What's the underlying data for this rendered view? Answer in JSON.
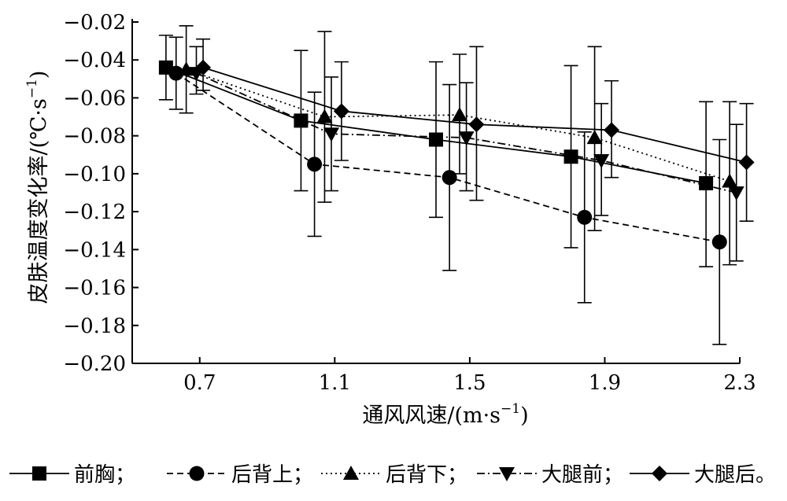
{
  "chart_data": {
    "type": "line",
    "title": "",
    "xlabel": "通风风速/(m·s",
    "xlabel_sup": "−1",
    "xlabel_tail": ")",
    "ylabel": "皮肤温度变化率/(℃·s",
    "ylabel_sup": "−1",
    "ylabel_tail": ")",
    "xlim": [
      0.5,
      2.3
    ],
    "ylim": [
      -0.2,
      -0.02
    ],
    "x_ticks": [
      0.7,
      1.1,
      1.5,
      1.9,
      2.3
    ],
    "x_tick_labels": [
      "0.7",
      "1.1",
      "1.5",
      "1.9",
      "2.3"
    ],
    "y_ticks": [
      -0.02,
      -0.04,
      -0.06,
      -0.08,
      -0.1,
      -0.12,
      -0.14,
      -0.16,
      -0.18,
      -0.2
    ],
    "y_tick_labels": [
      "−0.02",
      "−0.04",
      "−0.06",
      "−0.08",
      "−0.10",
      "−0.12",
      "−0.14",
      "−0.16",
      "−0.18",
      "−0.20"
    ],
    "grid": false,
    "legend_position": "bottom",
    "legend_separator": "；",
    "legend_end": "。",
    "series": [
      {
        "name": "前胸",
        "marker": "square",
        "dash": "solid",
        "x": [
          0.6,
          1.0,
          1.4,
          1.8,
          2.2
        ],
        "y": [
          -0.044,
          -0.072,
          -0.082,
          -0.091,
          -0.105
        ],
        "err_low": [
          -0.061,
          -0.109,
          -0.123,
          -0.139,
          -0.149
        ],
        "err_high": [
          -0.027,
          -0.035,
          -0.041,
          -0.043,
          -0.062
        ]
      },
      {
        "name": "后背上",
        "marker": "circle",
        "dash": "dashed",
        "x": [
          0.63,
          1.04,
          1.44,
          1.84,
          2.24
        ],
        "y": [
          -0.047,
          -0.095,
          -0.102,
          -0.123,
          -0.136
        ],
        "err_low": [
          -0.066,
          -0.133,
          -0.151,
          -0.168,
          -0.19
        ],
        "err_high": [
          -0.028,
          -0.057,
          -0.053,
          -0.078,
          -0.082
        ]
      },
      {
        "name": "后背下",
        "marker": "triangle-up",
        "dash": "dotted",
        "x": [
          0.66,
          1.07,
          1.47,
          1.87,
          2.27
        ],
        "y": [
          -0.045,
          -0.07,
          -0.069,
          -0.081,
          -0.104
        ],
        "err_low": [
          -0.068,
          -0.115,
          -0.1,
          -0.13,
          -0.148
        ],
        "err_high": [
          -0.022,
          -0.025,
          -0.037,
          -0.033,
          -0.062
        ]
      },
      {
        "name": "大腿前",
        "marker": "triangle-down",
        "dash": "dashdot",
        "x": [
          0.69,
          1.09,
          1.49,
          1.89,
          2.29
        ],
        "y": [
          -0.047,
          -0.079,
          -0.081,
          -0.093,
          -0.11
        ],
        "err_low": [
          -0.058,
          -0.109,
          -0.109,
          -0.122,
          -0.146
        ],
        "err_high": [
          -0.033,
          -0.049,
          -0.052,
          -0.063,
          -0.074
        ]
      },
      {
        "name": "大腿后",
        "marker": "diamond",
        "dash": "solid",
        "x": [
          0.71,
          1.12,
          1.52,
          1.92,
          2.32
        ],
        "y": [
          -0.044,
          -0.067,
          -0.074,
          -0.077,
          -0.094
        ],
        "err_low": [
          -0.056,
          -0.093,
          -0.114,
          -0.102,
          -0.125
        ],
        "err_high": [
          -0.029,
          -0.041,
          -0.033,
          -0.051,
          -0.063
        ]
      }
    ]
  }
}
